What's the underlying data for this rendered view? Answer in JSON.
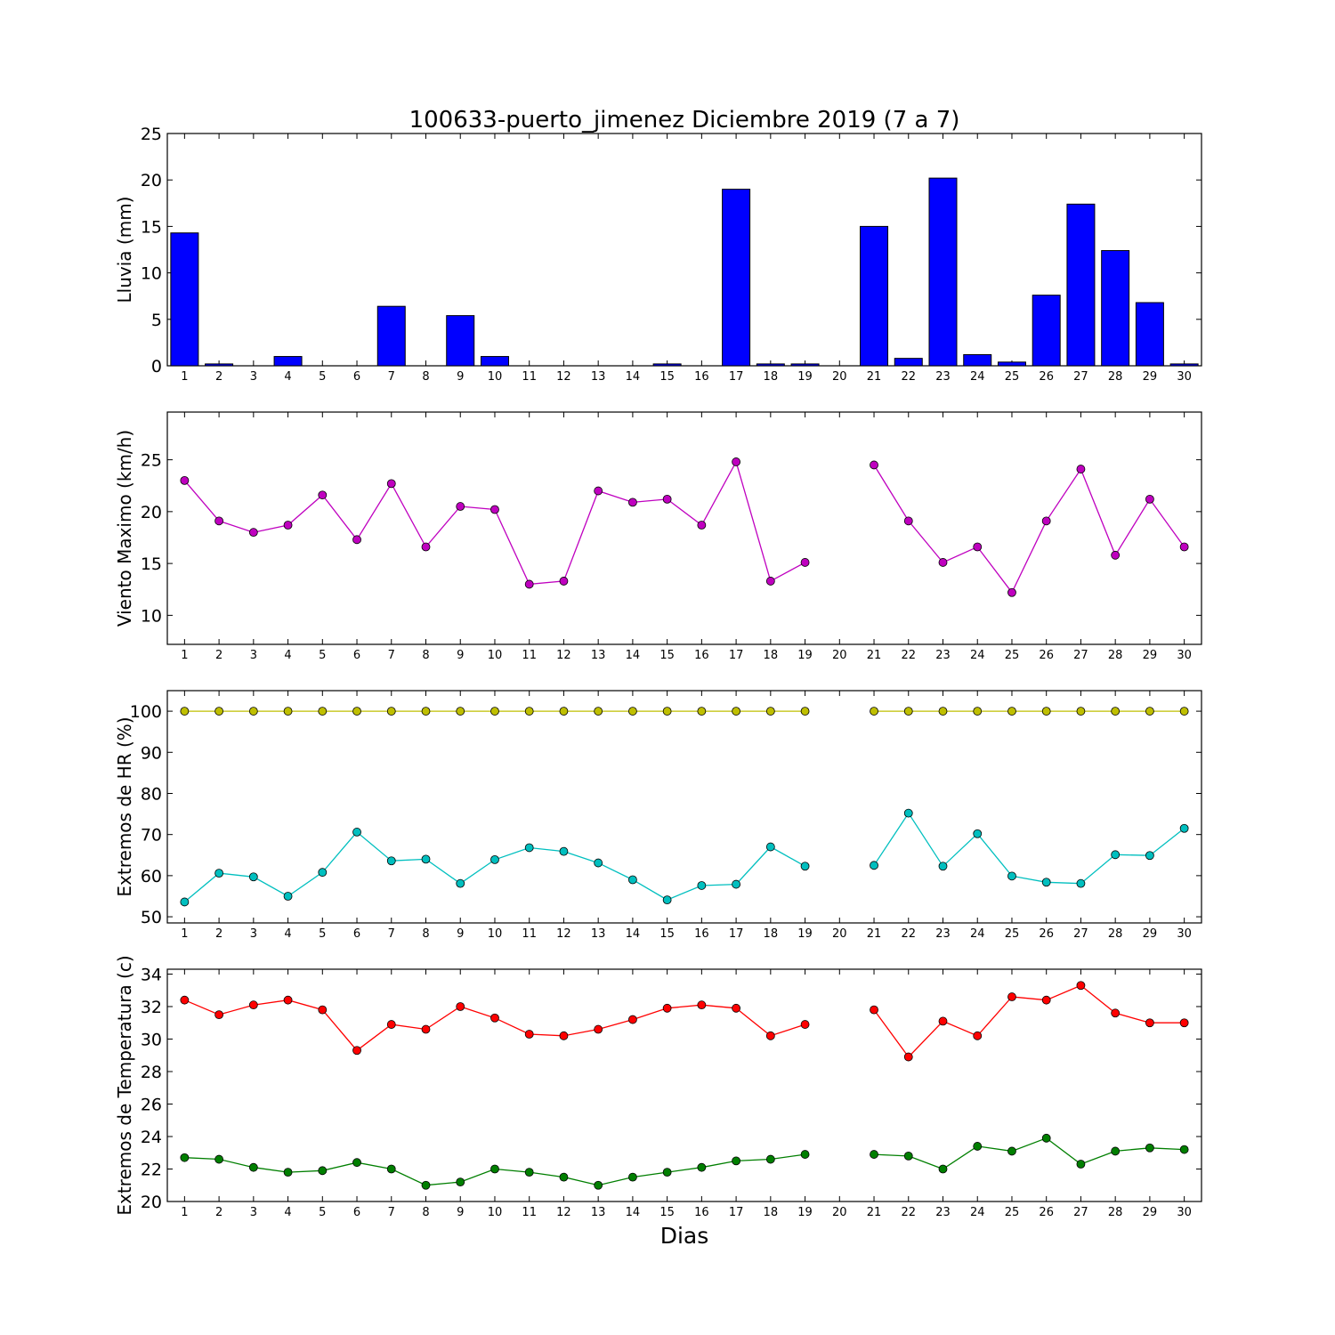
{
  "title": "100633-puerto_jimenez Diciembre 2019  (7 a 7)",
  "xlabel": "Dias",
  "colors": {
    "bar": "#0000ff",
    "wind": "#bf00bf",
    "hr_max": "#bfbf00",
    "hr_min": "#00bfbf",
    "temp_max": "#ff0000",
    "temp_min": "#007f00"
  },
  "chart_data": [
    {
      "type": "bar",
      "ylabel": "Lluvia (mm)",
      "categories": [
        "1",
        "2",
        "3",
        "4",
        "5",
        "6",
        "7",
        "8",
        "9",
        "10",
        "11",
        "12",
        "13",
        "14",
        "15",
        "16",
        "17",
        "18",
        "19",
        "20",
        "21",
        "22",
        "23",
        "24",
        "25",
        "26",
        "27",
        "28",
        "29",
        "30"
      ],
      "ylim": [
        0,
        25
      ],
      "yticks": [
        0,
        5,
        10,
        15,
        20,
        25
      ],
      "series": [
        {
          "values": [
            14.3,
            0.2,
            0,
            1.0,
            0,
            0,
            6.4,
            0,
            5.4,
            1.0,
            0,
            0,
            0,
            0,
            0.2,
            0,
            19.0,
            0.2,
            0.2,
            0,
            15.0,
            0.8,
            20.2,
            1.2,
            0.4,
            7.6,
            17.4,
            12.4,
            6.8,
            0.2
          ],
          "color": "#0000ff"
        }
      ],
      "legend": "none",
      "grid": false
    },
    {
      "type": "line",
      "ylabel": "Viento Maximo (km/h)",
      "categories": [
        "1",
        "2",
        "3",
        "4",
        "5",
        "6",
        "7",
        "8",
        "9",
        "10",
        "11",
        "12",
        "13",
        "14",
        "15",
        "16",
        "17",
        "18",
        "19",
        "20",
        "21",
        "22",
        "23",
        "24",
        "25",
        "26",
        "27",
        "28",
        "29",
        "30"
      ],
      "ylim": [
        7.2,
        29.6
      ],
      "yticks": [
        10,
        15,
        20,
        25
      ],
      "series": [
        {
          "values": [
            23.0,
            19.1,
            18.0,
            18.7,
            21.6,
            17.3,
            22.7,
            16.6,
            20.5,
            20.2,
            13.0,
            13.3,
            22.0,
            20.9,
            21.2,
            18.7,
            24.8,
            13.3,
            15.1,
            null,
            24.5,
            19.1,
            15.1,
            16.6,
            12.2,
            19.1,
            24.1,
            15.8,
            21.2,
            16.6
          ],
          "color": "#bf00bf"
        }
      ],
      "legend": "none",
      "grid": false
    },
    {
      "type": "line",
      "ylabel": "Extremos de HR (%)",
      "categories": [
        "1",
        "2",
        "3",
        "4",
        "5",
        "6",
        "7",
        "8",
        "9",
        "10",
        "11",
        "12",
        "13",
        "14",
        "15",
        "16",
        "17",
        "18",
        "19",
        "20",
        "21",
        "22",
        "23",
        "24",
        "25",
        "26",
        "27",
        "28",
        "29",
        "30"
      ],
      "ylim": [
        48.5,
        105
      ],
      "yticks": [
        50,
        60,
        70,
        80,
        90,
        100
      ],
      "series": [
        {
          "values": [
            100,
            100,
            100,
            100,
            100,
            100,
            100,
            100,
            100,
            100,
            100,
            100,
            100,
            100,
            100,
            100,
            100,
            100,
            100,
            null,
            100,
            100,
            100,
            100,
            100,
            100,
            100,
            100,
            100,
            100
          ],
          "color": "#bfbf00"
        },
        {
          "values": [
            53.6,
            60.6,
            59.7,
            55.0,
            60.8,
            70.6,
            63.6,
            64.0,
            58.1,
            63.9,
            66.8,
            65.9,
            63.1,
            59.0,
            54.1,
            57.6,
            57.9,
            67.0,
            62.3,
            null,
            62.5,
            75.2,
            62.3,
            70.2,
            59.9,
            58.4,
            58.1,
            65.1,
            64.9,
            71.5
          ],
          "color": "#00bfbf"
        }
      ],
      "legend": "none",
      "grid": false
    },
    {
      "type": "line",
      "ylabel": "Extremos de Temperatura (c)",
      "categories": [
        "1",
        "2",
        "3",
        "4",
        "5",
        "6",
        "7",
        "8",
        "9",
        "10",
        "11",
        "12",
        "13",
        "14",
        "15",
        "16",
        "17",
        "18",
        "19",
        "20",
        "21",
        "22",
        "23",
        "24",
        "25",
        "26",
        "27",
        "28",
        "29",
        "30"
      ],
      "ylim": [
        20,
        34.3
      ],
      "yticks": [
        20,
        22,
        24,
        26,
        28,
        30,
        32,
        34
      ],
      "series": [
        {
          "values": [
            32.4,
            31.5,
            32.1,
            32.4,
            31.8,
            29.3,
            30.9,
            30.6,
            32.0,
            31.3,
            30.3,
            30.2,
            30.6,
            31.2,
            31.9,
            32.1,
            31.9,
            30.2,
            30.9,
            null,
            31.8,
            28.9,
            31.1,
            30.2,
            32.6,
            32.4,
            33.3,
            31.6,
            31.0,
            31.0
          ],
          "color": "#ff0000"
        },
        {
          "values": [
            22.7,
            22.6,
            22.1,
            21.8,
            21.9,
            22.4,
            22.0,
            21.0,
            21.2,
            22.0,
            21.8,
            21.5,
            21.0,
            21.5,
            21.8,
            22.1,
            22.5,
            22.6,
            22.9,
            null,
            22.9,
            22.8,
            22.0,
            23.4,
            23.1,
            23.9,
            22.3,
            23.1,
            23.3,
            23.2
          ],
          "color": "#007f00"
        }
      ],
      "legend": "none",
      "grid": false
    }
  ]
}
